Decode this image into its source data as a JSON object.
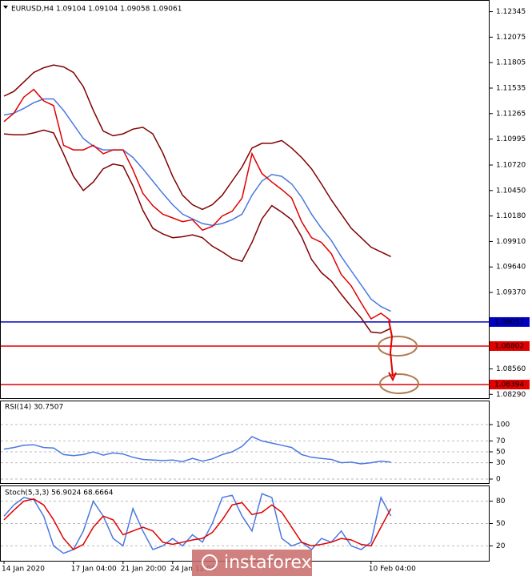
{
  "chart_data": [
    {
      "type": "line",
      "title": "EURUSD,H4 1.09104 1.09104 1.09058 1.09061",
      "categories": [
        "14 Jan 2020",
        null,
        null,
        null,
        null,
        null,
        null,
        "17 Jan 04:00",
        null,
        null,
        null,
        null,
        "21 Jan 20:00",
        null,
        null,
        null,
        null,
        "24 Jan 12:00",
        null,
        null,
        null,
        null,
        null,
        null,
        null,
        null,
        null,
        null,
        null,
        null,
        null,
        null,
        null,
        null,
        null,
        null,
        null,
        "10 Feb 04:00",
        null,
        null
      ],
      "series": [
        {
          "color": "#800000",
          "values": [
            1.1145,
            1.115,
            1.116,
            1.117,
            1.1175,
            1.1178,
            1.1176,
            1.117,
            1.1155,
            1.113,
            1.1108,
            1.1103,
            1.1105,
            1.111,
            1.1112,
            1.1105,
            1.1085,
            1.106,
            1.104,
            1.103,
            1.1025,
            1.103,
            1.104,
            1.1055,
            1.107,
            1.109,
            1.1095,
            1.1095,
            1.1098,
            1.109,
            1.108,
            1.1068,
            1.1052,
            1.1035,
            1.102,
            1.1005,
            1.0995,
            1.0985,
            1.098,
            1.0975
          ]
        },
        {
          "color": "#800000",
          "values": [
            1.1105,
            1.1104,
            1.1104,
            1.1106,
            1.1109,
            1.1106,
            1.1084,
            1.106,
            1.1045,
            1.1054,
            1.1068,
            1.1073,
            1.1071,
            1.105,
            1.1024,
            1.1005,
            1.0999,
            1.0995,
            1.0996,
            1.0998,
            1.0995,
            1.0986,
            1.098,
            1.0973,
            1.097,
            1.099,
            1.1015,
            1.1029,
            1.1022,
            1.1014,
            1.0996,
            1.0972,
            1.0958,
            1.0949,
            1.0935,
            1.0922,
            1.091,
            1.0895,
            1.0894,
            1.0899
          ]
        },
        {
          "color": "#4a78e0",
          "values": [
            1.1125,
            1.1127,
            1.1132,
            1.1138,
            1.1142,
            1.1142,
            1.113,
            1.1115,
            1.11,
            1.1092,
            1.1088,
            1.1088,
            1.1088,
            1.108,
            1.1068,
            1.1055,
            1.1042,
            1.103,
            1.102,
            1.1015,
            1.101,
            1.1008,
            1.101,
            1.1014,
            1.102,
            1.104,
            1.1055,
            1.1062,
            1.106,
            1.1052,
            1.1038,
            1.102,
            1.1005,
            1.0992,
            1.0975,
            1.096,
            1.0945,
            1.093,
            1.0922,
            1.0917
          ]
        },
        {
          "color": "#e00000",
          "values": [
            1.1118,
            1.1127,
            1.1144,
            1.1152,
            1.114,
            1.1135,
            1.1093,
            1.1088,
            1.1088,
            1.1093,
            1.1084,
            1.1088,
            1.1088,
            1.1067,
            1.1042,
            1.1029,
            1.102,
            1.1016,
            1.1012,
            1.1014,
            1.1003,
            1.1007,
            1.1018,
            1.1023,
            1.1037,
            1.1084,
            1.1063,
            1.1054,
            1.1046,
            1.1037,
            1.1012,
            1.0995,
            1.099,
            1.0978,
            1.0956,
            1.0944,
            1.0926,
            1.0909,
            1.0915,
            1.0907
          ]
        }
      ],
      "ylim": [
        1.0825,
        1.1246
      ],
      "yticks": [
        1.12345,
        1.12075,
        1.11805,
        1.11535,
        1.11265,
        {
          "value": 1.10995,
          "label": "1.10995"
        },
        {
          "value": 1.1072,
          "label": "1.10720"
        },
        {
          "value": 1.1045,
          "label": "1.10450"
        },
        {
          "value": 1.1018,
          "label": "1.10180"
        },
        {
          "value": 1.0991,
          "label": "1.09910"
        },
        {
          "value": 1.0964,
          "label": "1.09640"
        },
        {
          "value": 1.0937,
          "label": "1.09370"
        },
        {
          "value": 1.0856,
          "label": "1.08560"
        },
        {
          "value": 1.0829,
          "label": "1.08290"
        }
      ],
      "levels": [
        {
          "value": 1.09057,
          "color": "#0000c0"
        },
        {
          "value": 1.08802,
          "color": "#e00000"
        },
        {
          "value": 1.08394,
          "color": "#e00000"
        }
      ],
      "grid": false
    },
    {
      "type": "line",
      "title": "RSI(14) 30.7507",
      "series": [
        {
          "color": "#4a78e0",
          "values": [
            55,
            58,
            62,
            63,
            58,
            57,
            45,
            43,
            45,
            50,
            44,
            48,
            46,
            40,
            36,
            35,
            34,
            35,
            32,
            38,
            33,
            37,
            45,
            50,
            60,
            78,
            70,
            66,
            62,
            58,
            45,
            40,
            38,
            36,
            30,
            31,
            28,
            30,
            33,
            31
          ]
        }
      ],
      "ylim": [
        0,
        100
      ],
      "yticks": [
        0,
        30,
        50,
        70,
        100
      ],
      "grid": true
    },
    {
      "type": "line",
      "title": "Stoch(5,3,3) 56.9024 68.6664",
      "series": [
        {
          "color": "#4a78e0",
          "values": [
            60,
            75,
            85,
            82,
            60,
            20,
            10,
            15,
            40,
            80,
            60,
            30,
            20,
            70,
            40,
            15,
            20,
            30,
            20,
            35,
            25,
            50,
            85,
            88,
            60,
            40,
            90,
            85,
            30,
            20,
            25,
            15,
            30,
            25,
            40,
            20,
            15,
            25,
            85,
            60
          ]
        },
        {
          "color": "#e00000",
          "values": [
            55,
            68,
            80,
            83,
            75,
            55,
            30,
            15,
            22,
            45,
            60,
            55,
            35,
            40,
            45,
            40,
            25,
            22,
            25,
            28,
            30,
            38,
            55,
            75,
            78,
            62,
            65,
            75,
            65,
            45,
            25,
            20,
            22,
            25,
            30,
            28,
            22,
            20,
            45,
            70
          ]
        }
      ],
      "ylim": [
        0,
        100
      ],
      "yticks": [
        20,
        50,
        80
      ],
      "grid": true
    }
  ],
  "watermark": "instaforex"
}
